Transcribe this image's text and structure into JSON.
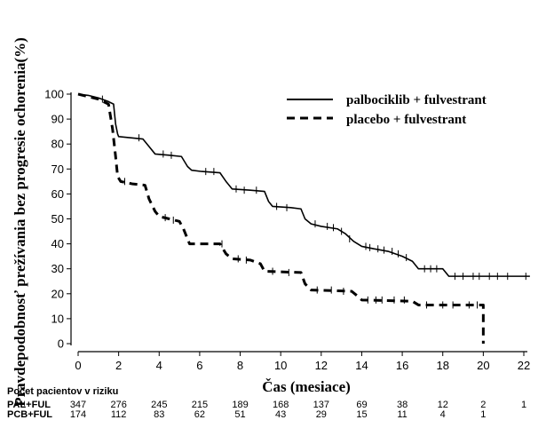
{
  "chart_data": {
    "type": "line",
    "xlabel": "Čas (mesiace)",
    "ylabel": "Pravdepodobnosť prežívania bez progresie ochorenia(%)",
    "xlim": [
      0,
      22
    ],
    "ylim": [
      0,
      100
    ],
    "xticks": [
      "0",
      "2",
      "4",
      "6",
      "8",
      "10",
      "12",
      "14",
      "16",
      "18",
      "20",
      "22"
    ],
    "yticks": [
      "0",
      "10",
      "20",
      "30",
      "40",
      "50",
      "60",
      "70",
      "80",
      "90",
      "100"
    ],
    "legend_position": "top-right",
    "series": [
      {
        "name": "palbociklib + fulvestrant",
        "style": "solid",
        "points": [
          [
            0,
            100
          ],
          [
            0.5,
            99.5
          ],
          [
            1.0,
            98.5
          ],
          [
            1.5,
            97
          ],
          [
            1.75,
            96
          ],
          [
            1.85,
            88
          ],
          [
            1.95,
            84
          ],
          [
            2.0,
            83
          ],
          [
            3.2,
            82
          ],
          [
            3.5,
            79
          ],
          [
            3.8,
            76
          ],
          [
            4.5,
            75.5
          ],
          [
            5.1,
            75
          ],
          [
            5.4,
            71
          ],
          [
            5.6,
            69.5
          ],
          [
            6.1,
            69
          ],
          [
            7.0,
            68.5
          ],
          [
            7.3,
            65
          ],
          [
            7.6,
            62
          ],
          [
            8.5,
            61.5
          ],
          [
            9.2,
            61
          ],
          [
            9.4,
            57
          ],
          [
            9.6,
            55
          ],
          [
            10.5,
            54.5
          ],
          [
            11.0,
            54
          ],
          [
            11.2,
            50
          ],
          [
            11.5,
            48
          ],
          [
            12.0,
            47
          ],
          [
            12.8,
            46
          ],
          [
            13.2,
            44
          ],
          [
            13.6,
            41
          ],
          [
            14.0,
            39
          ],
          [
            14.6,
            38
          ],
          [
            15.3,
            37
          ],
          [
            16.0,
            35
          ],
          [
            16.5,
            33
          ],
          [
            16.8,
            30
          ],
          [
            18.0,
            30
          ],
          [
            18.3,
            27
          ],
          [
            20.0,
            27
          ],
          [
            22.3,
            27
          ]
        ]
      },
      {
        "name": "placebo + fulvestrant",
        "style": "dashed",
        "points": [
          [
            0,
            100
          ],
          [
            0.5,
            99
          ],
          [
            1.0,
            98
          ],
          [
            1.5,
            96
          ],
          [
            1.7,
            86
          ],
          [
            1.85,
            75
          ],
          [
            1.95,
            67
          ],
          [
            2.1,
            65
          ],
          [
            2.7,
            64
          ],
          [
            3.3,
            63.5
          ],
          [
            3.5,
            58
          ],
          [
            3.8,
            53
          ],
          [
            4.0,
            51
          ],
          [
            5.0,
            49
          ],
          [
            5.2,
            46
          ],
          [
            5.5,
            40
          ],
          [
            7.0,
            40
          ],
          [
            7.3,
            36
          ],
          [
            7.6,
            34
          ],
          [
            8.5,
            33.5
          ],
          [
            9.0,
            32
          ],
          [
            9.2,
            29
          ],
          [
            11.0,
            28.5
          ],
          [
            11.2,
            24
          ],
          [
            11.5,
            21.5
          ],
          [
            13.5,
            21
          ],
          [
            13.8,
            19
          ],
          [
            14.0,
            17.5
          ],
          [
            16.5,
            17
          ],
          [
            16.8,
            15.5
          ],
          [
            20.0,
            15.5
          ],
          [
            20.0,
            0
          ]
        ]
      }
    ],
    "censor_marks": {
      "palbociklib + fulvestrant": [
        [
          1.2,
          98
        ],
        [
          3.0,
          82.5
        ],
        [
          4.2,
          76
        ],
        [
          4.6,
          75.5
        ],
        [
          6.3,
          69
        ],
        [
          6.7,
          69
        ],
        [
          7.8,
          62
        ],
        [
          8.2,
          61.5
        ],
        [
          8.8,
          61.5
        ],
        [
          9.8,
          55
        ],
        [
          10.3,
          54.5
        ],
        [
          11.7,
          48
        ],
        [
          12.3,
          47
        ],
        [
          12.6,
          46.5
        ],
        [
          13.0,
          45
        ],
        [
          13.4,
          42
        ],
        [
          14.2,
          39
        ],
        [
          14.4,
          38.5
        ],
        [
          14.8,
          38
        ],
        [
          15.1,
          37.5
        ],
        [
          15.5,
          37
        ],
        [
          15.8,
          36
        ],
        [
          16.2,
          34.5
        ],
        [
          17.1,
          30
        ],
        [
          17.4,
          30
        ],
        [
          17.7,
          30
        ],
        [
          18.6,
          27
        ],
        [
          19.0,
          27
        ],
        [
          19.5,
          27
        ],
        [
          19.8,
          27
        ],
        [
          20.3,
          27
        ],
        [
          20.7,
          27
        ],
        [
          21.2,
          27
        ],
        [
          22.1,
          27
        ]
      ],
      "placebo + fulvestrant": [
        [
          2.3,
          65
        ],
        [
          4.3,
          50.5
        ],
        [
          4.7,
          49.5
        ],
        [
          7.1,
          40
        ],
        [
          7.9,
          34
        ],
        [
          8.3,
          33.5
        ],
        [
          9.6,
          29
        ],
        [
          10.4,
          28.5
        ],
        [
          11.8,
          21.5
        ],
        [
          12.5,
          21.5
        ],
        [
          13.1,
          21
        ],
        [
          14.3,
          17.5
        ],
        [
          14.7,
          17.5
        ],
        [
          15.0,
          17.5
        ],
        [
          15.6,
          17.5
        ],
        [
          16.1,
          17.5
        ],
        [
          17.2,
          15.5
        ],
        [
          18.0,
          15.5
        ],
        [
          18.5,
          15.5
        ],
        [
          19.3,
          15.5
        ],
        [
          19.7,
          15.5
        ]
      ]
    },
    "risk_table": {
      "title": "Počet pacientov v riziku",
      "rows": [
        {
          "label": "PAL+FUL",
          "values": [
            "347",
            "276",
            "245",
            "215",
            "189",
            "168",
            "137",
            "69",
            "38",
            "12",
            "2",
            "1"
          ]
        },
        {
          "label": "PCB+FUL",
          "values": [
            "174",
            "112",
            "83",
            "62",
            "51",
            "43",
            "29",
            "15",
            "11",
            "4",
            "1",
            ""
          ]
        }
      ]
    }
  }
}
